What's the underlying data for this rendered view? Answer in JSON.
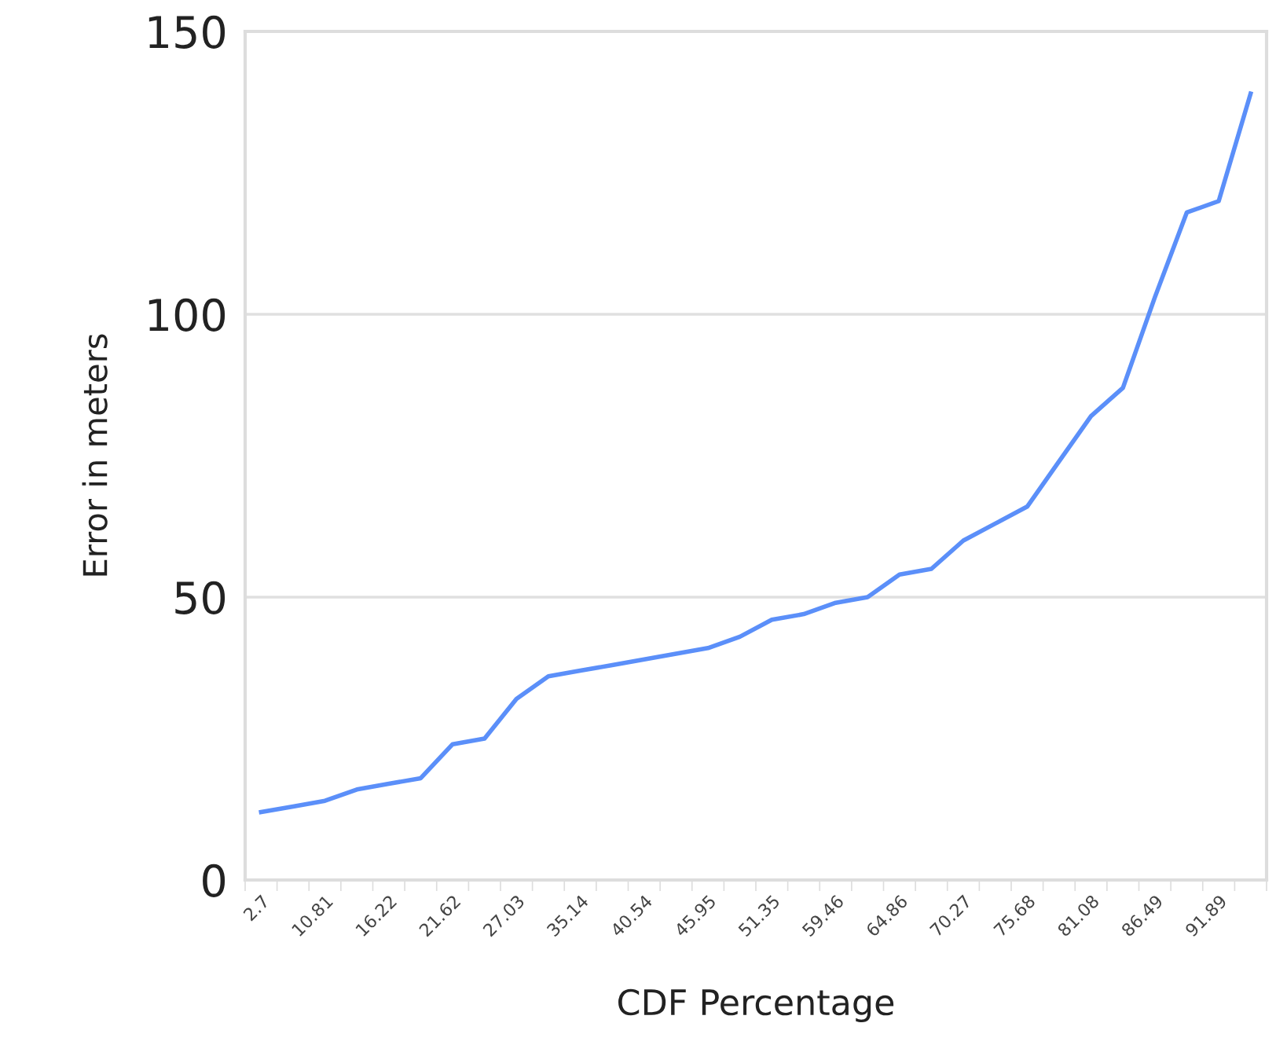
{
  "chart_data": {
    "type": "line",
    "xlabel": "CDF Percentage",
    "ylabel": "Error in meters",
    "categories": [
      "2.7",
      null,
      "10.81",
      null,
      "16.22",
      null,
      "21.62",
      null,
      "27.03",
      null,
      "35.14",
      null,
      "40.54",
      null,
      "45.95",
      null,
      "51.35",
      null,
      "59.46",
      null,
      "64.86",
      null,
      "70.27",
      null,
      "75.68",
      null,
      "81.08",
      null,
      "86.49",
      null,
      "91.89",
      null
    ],
    "series": [
      {
        "color": "#5b8ff9",
        "values": [
          12,
          13,
          14,
          16,
          17,
          18,
          24,
          25,
          32,
          36,
          37,
          38,
          39,
          40,
          41,
          43,
          46,
          47,
          49,
          50,
          54,
          55,
          60,
          63,
          66,
          74,
          82,
          87,
          103,
          118,
          120,
          139
        ]
      }
    ],
    "ylim": [
      0,
      150
    ],
    "yticks": [
      0,
      50,
      100,
      150
    ],
    "grid": "y",
    "marker": "none",
    "line_style": "solid"
  }
}
